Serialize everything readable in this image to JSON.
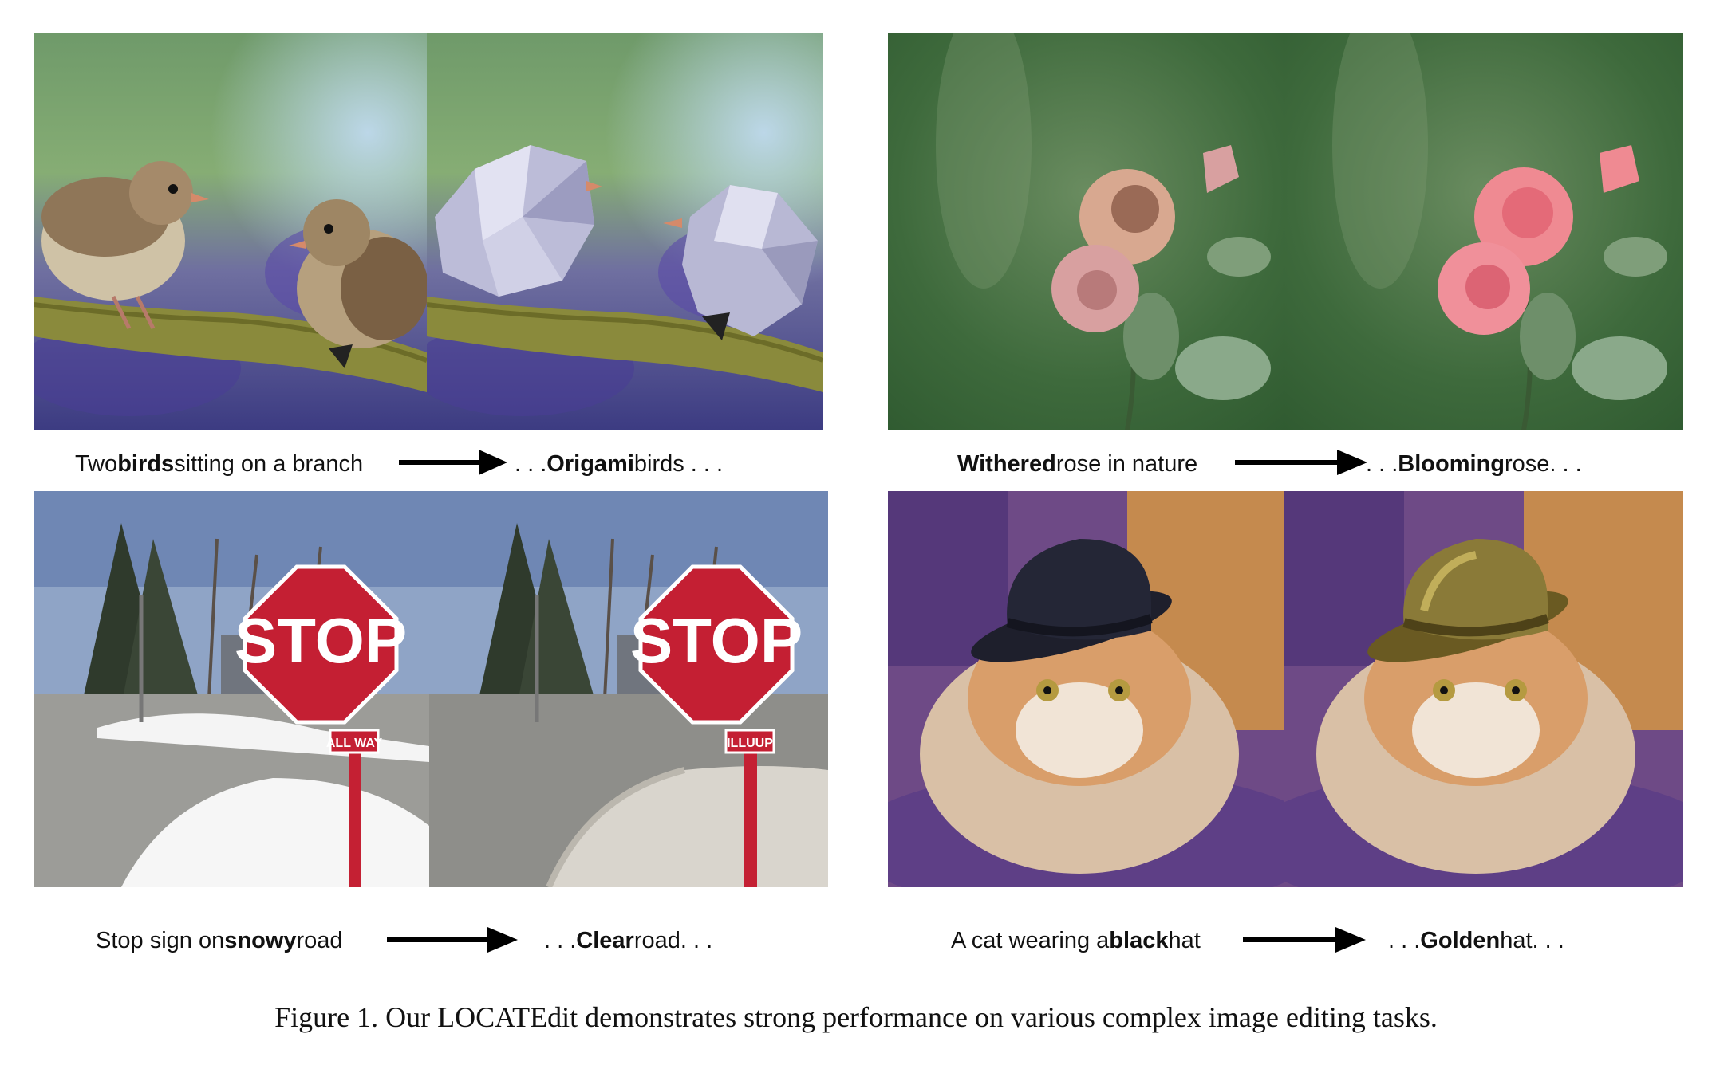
{
  "examples": [
    {
      "source": {
        "pre": "Two ",
        "bold": "birds",
        "post": " sitting on a branch"
      },
      "target": {
        "pre": ". . .",
        "bold": "Origami",
        "post": " birds . . ."
      }
    },
    {
      "source": {
        "pre": "",
        "bold": "Withered",
        "post": " rose in nature"
      },
      "target": {
        "pre": ". . .",
        "bold": "Blooming",
        "post": " rose. . ."
      }
    },
    {
      "source": {
        "pre": "Stop sign on ",
        "bold": "snowy",
        "post": " road"
      },
      "target": {
        "pre": ". . .",
        "bold": "Clear",
        "post": " road. . ."
      }
    },
    {
      "source": {
        "pre": "A cat wearing a ",
        "bold": "black",
        "post": " hat"
      },
      "target": {
        "pre": ". . .",
        "bold": "Golden",
        "post": " hat. . ."
      }
    }
  ],
  "signs": {
    "stop": "STOP",
    "all_way_before": "ALL WAY",
    "all_way_after": "ILLUUP"
  },
  "figure_caption": "Figure 1. Our LOCATEdit demonstrates strong performance on various complex image editing tasks."
}
